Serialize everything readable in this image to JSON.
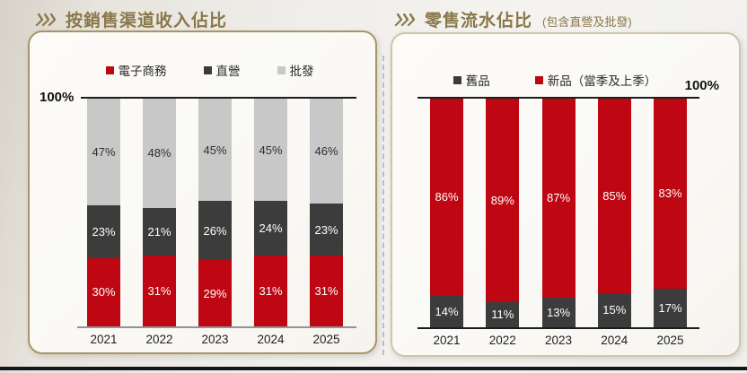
{
  "left_panel": {
    "title": "按銷售渠道收入佔比"
  },
  "right_panel": {
    "title": "零售流水佔比",
    "subtitle": "(包含直營及批發)"
  },
  "theme": {
    "title_gold": "#8a774a",
    "card_border_left": "#a89566",
    "card_border_right": "#cfc5a8",
    "bottom_strip": "#16151d",
    "brand_red": "#be0712",
    "dark_gray": "#3c3c3c",
    "light_gray": "#c8c8c8"
  },
  "chart_data": [
    {
      "type": "bar",
      "stacked": true,
      "title": "按銷售渠道收入佔比",
      "categories": [
        "2021",
        "2022",
        "2023",
        "2024",
        "2025"
      ],
      "series": [
        {
          "name": "電子商務",
          "color": "#be0712",
          "label_color": "#ffffff",
          "values": [
            30,
            31,
            29,
            31,
            31
          ]
        },
        {
          "name": "直營",
          "color": "#3c3c3c",
          "label_color": "#ffffff",
          "values": [
            23,
            21,
            26,
            24,
            23
          ]
        },
        {
          "name": "批發",
          "color": "#c8c8c8",
          "label_color": "#2f2f2f",
          "values": [
            47,
            48,
            45,
            45,
            46
          ]
        }
      ],
      "ylim": [
        0,
        100
      ],
      "y_top_label": "100%",
      "value_suffix": "%",
      "legend_position": "top",
      "grid": false
    },
    {
      "type": "bar",
      "stacked": true,
      "title": "零售流水佔比",
      "subtitle": "(包含直營及批發)",
      "categories": [
        "2021",
        "2022",
        "2023",
        "2024",
        "2025"
      ],
      "series": [
        {
          "name": "舊品",
          "color": "#3c3c3c",
          "label_color": "#ffffff",
          "values": [
            14,
            11,
            13,
            15,
            17
          ]
        },
        {
          "name": "新品（當季及上季）",
          "color": "#be0712",
          "label_color": "#ffffff",
          "values": [
            86,
            89,
            87,
            85,
            83
          ]
        }
      ],
      "ylim": [
        0,
        100
      ],
      "y_top_label": "100%",
      "value_suffix": "%",
      "legend_position": "top",
      "grid": false
    }
  ]
}
